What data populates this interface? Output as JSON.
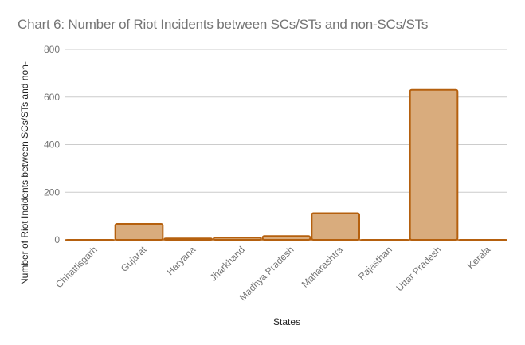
{
  "chart_data": {
    "type": "bar",
    "title": "Chart 6: Number of Riot Incidents between SCs/STs and non-SCs/STs",
    "xlabel": "States",
    "ylabel": "Number of Riot Incidents between SCs/STs and non-",
    "categories": [
      "Chhattisgarh",
      "Gujarat",
      "Haryana",
      "Jharkhand",
      "Madhya Pradesh",
      "Maharashtra",
      "Rajasthan",
      "Uttar Pradesh",
      "Kerala"
    ],
    "values": [
      0,
      67,
      6,
      9,
      16,
      112,
      0,
      630,
      0
    ],
    "ylim": [
      0,
      800
    ],
    "yticks": [
      0,
      200,
      400,
      600,
      800
    ],
    "grid": true,
    "legend": "none",
    "colors": {
      "bar_fill": "#d9ac7d",
      "bar_stroke": "#b5600e",
      "grid": "#cccccc",
      "text": "#757575"
    }
  }
}
